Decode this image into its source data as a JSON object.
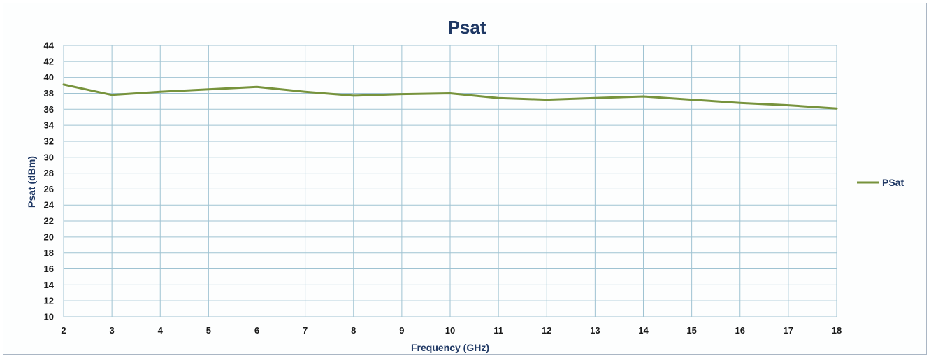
{
  "chart_data": {
    "type": "line",
    "title": "Psat",
    "xlabel": "Frequency (GHz)",
    "ylabel": "Psat (dBm)",
    "xlim": [
      2,
      18
    ],
    "ylim": [
      10,
      44
    ],
    "xticks": [
      "2",
      "3",
      "4",
      "5",
      "6",
      "7",
      "8",
      "9",
      "10",
      "11",
      "12",
      "13",
      "14",
      "15",
      "16",
      "17",
      "18"
    ],
    "yticks": [
      "10",
      "12",
      "14",
      "16",
      "18",
      "20",
      "22",
      "24",
      "26",
      "28",
      "30",
      "32",
      "34",
      "36",
      "38",
      "40",
      "42",
      "44"
    ],
    "grid": true,
    "legend_position": "right",
    "series": [
      {
        "name": "PSat",
        "color": "#77933c",
        "x": [
          2,
          3,
          4,
          5,
          6,
          7,
          8,
          9,
          10,
          11,
          12,
          13,
          14,
          15,
          16,
          17,
          18
        ],
        "y": [
          39.1,
          37.8,
          38.2,
          38.5,
          38.8,
          38.2,
          37.7,
          37.9,
          38.0,
          37.4,
          37.2,
          37.4,
          37.6,
          37.2,
          36.8,
          36.5,
          36.1
        ]
      }
    ],
    "colors": {
      "grid": "#9fc3d2",
      "axis_title": "#1f3864"
    }
  }
}
